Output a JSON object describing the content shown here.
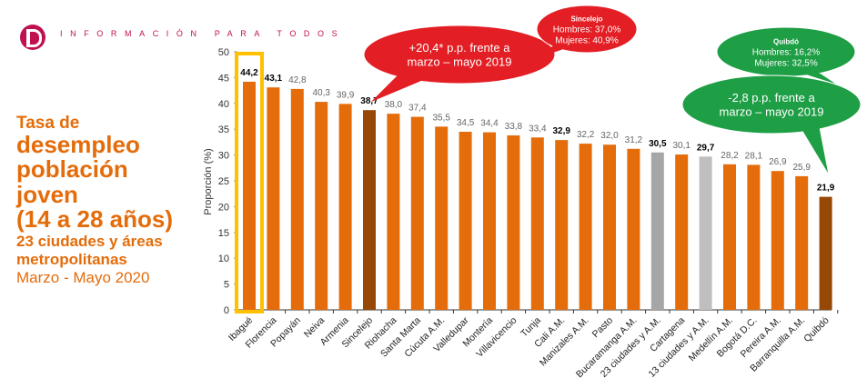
{
  "header": {
    "tagline": "INFORMACIÓN PARA TODOS"
  },
  "side": {
    "line1": "Tasa de",
    "line2": "desempleo",
    "line3": "población",
    "line4": "joven",
    "line5": "(14 a 28 años)",
    "line6": "23 ciudades y áreas",
    "line7": "metropolitanas",
    "period": "Marzo - Mayo 2020"
  },
  "callouts": {
    "red_main": [
      "+20,4* p.p. frente a",
      "marzo – mayo 2019"
    ],
    "red_small": {
      "title": "Sincelejo",
      "lines": [
        "Hombres: 37,0%",
        "Mujeres: 40,9%"
      ]
    },
    "green_small": {
      "title": "Quibdó",
      "lines": [
        "Hombres: 16,2%",
        "Mujeres: 32,5%"
      ]
    },
    "green_main": [
      "-2,8 p.p. frente a",
      "marzo – mayo 2019"
    ]
  },
  "colors": {
    "bar": "#E46C0A",
    "highlight": "#974706",
    "total23": "#A6A6A6",
    "total13": "#BFBFBF",
    "red": "#E31E24",
    "green": "#1E9E45",
    "frame": "#FFC000"
  },
  "chart_data": {
    "type": "bar",
    "ylabel": "Proporción (%)",
    "ylim": [
      0,
      50
    ],
    "yticks": [
      0,
      5,
      10,
      15,
      20,
      25,
      30,
      35,
      40,
      45,
      50
    ],
    "categories": [
      "Ibagué",
      "Florencia",
      "Popayán",
      "Neiva",
      "Armenia",
      "Sincelejo",
      "Riohacha",
      "Santa Marta",
      "Cúcuta A.M.",
      "Valledupar",
      "Montería",
      "Villavicencio",
      "Tunja",
      "Cali A.M.",
      "Manizales A.M.",
      "Pasto",
      "Bucaramanga A.M.",
      "23 ciudades y A.M.",
      "Cartagena",
      "13 ciudades y A.M.",
      "Medellín A.M.",
      "Bogotá  D.C.",
      "Pereira A.M.",
      "Barranquilla A.M.",
      "Quibdó"
    ],
    "values": [
      44.2,
      43.1,
      42.8,
      40.3,
      39.9,
      38.7,
      38.0,
      37.4,
      35.5,
      34.5,
      34.4,
      33.8,
      33.4,
      32.9,
      32.2,
      32.0,
      31.2,
      30.5,
      30.1,
      29.7,
      28.2,
      28.1,
      26.9,
      25.9,
      21.9
    ],
    "labels": [
      "44,2",
      "43,1",
      "42,8",
      "40,3",
      "39,9",
      "38,7",
      "38,0",
      "37,4",
      "35,5",
      "34,5",
      "34,4",
      "33,8",
      "33,4",
      "32,9",
      "32,2",
      "32,0",
      "31,2",
      "30,5",
      "30,1",
      "29,7",
      "28,2",
      "28,1",
      "26,9",
      "25,9",
      "21,9"
    ],
    "bold_labels": [
      "Ibagué",
      "Florencia",
      "Sincelejo",
      "Cali A.M.",
      "23 ciudades y A.M.",
      "13 ciudades y A.M.",
      "Quibdó"
    ]
  }
}
